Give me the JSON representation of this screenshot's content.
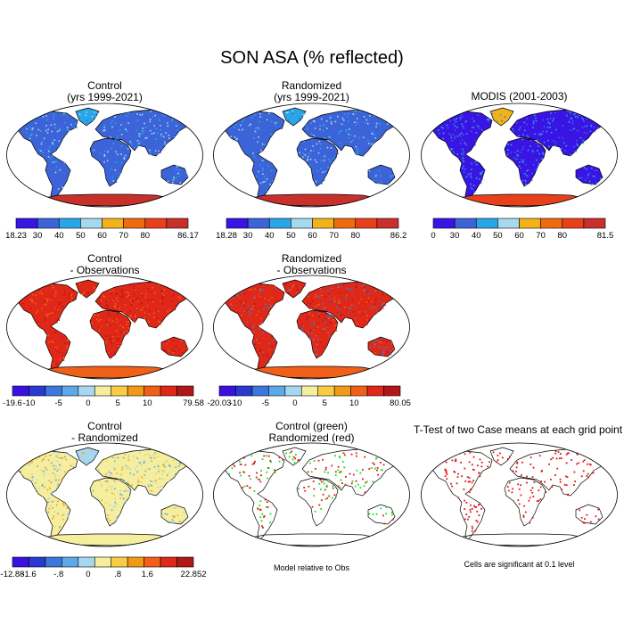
{
  "title": "SON ASA (% reflected)",
  "colors": {
    "absolute": [
      "#3a14e4",
      "#3c64d8",
      "#2aa6e8",
      "#a6d8ee",
      "#f2b21a",
      "#f06a10",
      "#e8401a",
      "#c8302c"
    ],
    "difference": [
      "#3c10e0",
      "#2a3ad0",
      "#3c78dc",
      "#5ca8e8",
      "#a6d6f0",
      "#f4ee9e",
      "#f8cc44",
      "#f29a18",
      "#f06018",
      "#e02818",
      "#b01818"
    ],
    "model_significant": "#19e019",
    "randomized_significant": "#e01818",
    "ttest_significant": "#e01818",
    "land_outline": "#000000",
    "ocean": "#ffffff"
  },
  "chart_data": [
    {
      "id": "control",
      "type": "heatmap",
      "map_projection": "robinson",
      "title_lines": [
        "Control",
        "(yrs 1999-2021)"
      ],
      "colorbar_labels": [
        "18.23",
        "30",
        "40",
        "50",
        "60",
        "70",
        "80",
        "86.17"
      ],
      "min": 18.23,
      "max": 86.17,
      "levels": [
        30,
        40,
        50,
        60,
        70,
        80
      ],
      "fills": {
        "americas": 1,
        "africa": 1,
        "eurasia": 1,
        "australia": 1,
        "greenland": 2,
        "antarctica": 7
      },
      "speckle": [
        1,
        2,
        3
      ]
    },
    {
      "id": "randomized",
      "type": "heatmap",
      "map_projection": "robinson",
      "title_lines": [
        "Randomized",
        "(yrs 1999-2021)"
      ],
      "colorbar_labels": [
        "18.28",
        "30",
        "40",
        "50",
        "60",
        "70",
        "80",
        "86.2"
      ],
      "min": 18.28,
      "max": 86.2,
      "levels": [
        30,
        40,
        50,
        60,
        70,
        80
      ],
      "fills": {
        "americas": 1,
        "africa": 1,
        "eurasia": 1,
        "australia": 1,
        "greenland": 2,
        "antarctica": 7
      },
      "speckle": [
        1,
        2,
        3
      ]
    },
    {
      "id": "modis",
      "type": "heatmap",
      "map_projection": "robinson",
      "title_lines": [
        "MODIS (2001-2003)"
      ],
      "colorbar_labels": [
        "0",
        "30",
        "40",
        "50",
        "60",
        "70",
        "80",
        "81.5"
      ],
      "min": 0,
      "max": 81.5,
      "levels": [
        30,
        40,
        50,
        60,
        70,
        80
      ],
      "fills": {
        "americas": 0,
        "africa": 0,
        "eurasia": 0,
        "australia": 0,
        "greenland": 4,
        "antarctica": 6
      },
      "speckle": [
        1,
        2
      ]
    },
    {
      "id": "control_minus_obs",
      "type": "heatmap",
      "map_projection": "robinson",
      "title_lines": [
        "Control",
        "- Observations"
      ],
      "colorbar_labels": [
        "-19.6",
        "-10",
        "-5",
        "0",
        "5",
        "10",
        "79.58"
      ],
      "min": -19.6,
      "max": 79.58,
      "levels": [
        -10,
        -5,
        0,
        5,
        10
      ],
      "fills": {
        "americas": 9,
        "africa": 9,
        "eurasia": 9,
        "australia": 9,
        "greenland": 9,
        "antarctica": 8
      },
      "speckle": [
        10,
        8
      ]
    },
    {
      "id": "randomized_minus_obs",
      "type": "heatmap",
      "map_projection": "robinson",
      "title_lines": [
        "Randomized",
        "- Observations"
      ],
      "colorbar_labels": [
        "-20.03",
        "-10",
        "-5",
        "0",
        "5",
        "10",
        "80.05"
      ],
      "min": -20.03,
      "max": 80.05,
      "levels": [
        -10,
        -5,
        0,
        5,
        10
      ],
      "fills": {
        "americas": 9,
        "africa": 9,
        "eurasia": 9,
        "australia": 9,
        "greenland": 9,
        "antarctica": 8
      },
      "speckle": [
        10,
        8,
        2
      ]
    },
    {
      "id": "control_minus_randomized",
      "type": "heatmap",
      "map_projection": "robinson",
      "title_lines": [
        "Control",
        "- Randomized"
      ],
      "colorbar_labels": [
        "-12.88",
        "-1.6",
        "-.8",
        "0",
        ".8",
        "1.6",
        "22.852"
      ],
      "min": -12.88,
      "max": 22.852,
      "levels": [
        -1.6,
        -0.8,
        0,
        0.8,
        1.6
      ],
      "fills": {
        "americas": 5,
        "africa": 5,
        "eurasia": 5,
        "australia": 5,
        "greenland": 4,
        "antarctica": 5
      },
      "speckle": [
        3,
        4,
        6,
        7
      ]
    },
    {
      "id": "significance_vs_obs",
      "type": "heatmap",
      "map_projection": "robinson",
      "title_lines": [
        "Control (green)",
        "Randomized (red)"
      ],
      "note": "Model relative to Obs",
      "land_fill": "none",
      "dots": [
        "#19e019",
        "#e01818"
      ]
    },
    {
      "id": "ttest",
      "type": "heatmap",
      "map_projection": "robinson",
      "title_lines": [
        "T-Test of two Case means at each grid point"
      ],
      "note": "Cells are significant at 0.1 level",
      "land_fill": "none",
      "dots": [
        "#e01818"
      ]
    }
  ]
}
